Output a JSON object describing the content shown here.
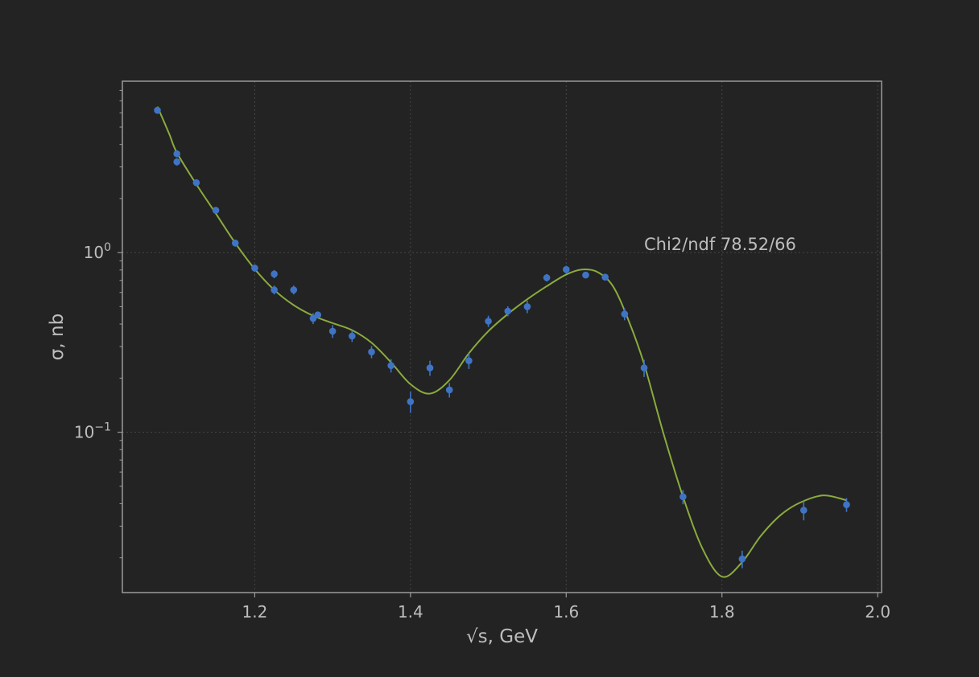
{
  "chart_data": {
    "type": "scatter",
    "xlabel": "√s, GeV",
    "ylabel": "σ, nb",
    "xlim": [
      1.03,
      2.005
    ],
    "ylim": [
      0.0128,
      9.0
    ],
    "y_scale": "log",
    "grid": true,
    "x_ticks": [
      {
        "value": 1.2,
        "label": "1.2"
      },
      {
        "value": 1.4,
        "label": "1.4"
      },
      {
        "value": 1.6,
        "label": "1.6"
      },
      {
        "value": 1.8,
        "label": "1.8"
      },
      {
        "value": 2.0,
        "label": "2.0"
      }
    ],
    "y_ticks": [
      {
        "value": 1.0,
        "base": "10",
        "exp": "0"
      },
      {
        "value": 0.1,
        "base": "10",
        "exp": "−1"
      }
    ],
    "annotation": "Chi2/ndf 78.52/66",
    "colors": {
      "background": "#232323",
      "axes": "#9a9a9a",
      "grid": "#454545",
      "text": "#bdbdbd",
      "points": "#3f74c5",
      "fit": "#8aab3e"
    },
    "series": [
      {
        "kind": "data",
        "points": [
          {
            "x": 1.075,
            "y": 6.2,
            "err": 0.28
          },
          {
            "x": 1.1,
            "y": 3.55,
            "err": 0.16
          },
          {
            "x": 1.1,
            "y": 3.2,
            "err": 0.15
          },
          {
            "x": 1.125,
            "y": 2.45,
            "err": 0.11
          },
          {
            "x": 1.15,
            "y": 1.72,
            "err": 0.07
          },
          {
            "x": 1.175,
            "y": 1.13,
            "err": 0.05
          },
          {
            "x": 1.2,
            "y": 0.82,
            "err": 0.04
          },
          {
            "x": 1.225,
            "y": 0.76,
            "err": 0.04
          },
          {
            "x": 1.225,
            "y": 0.62,
            "err": 0.035
          },
          {
            "x": 1.25,
            "y": 0.62,
            "err": 0.035
          },
          {
            "x": 1.275,
            "y": 0.43,
            "err": 0.03
          },
          {
            "x": 1.281,
            "y": 0.45,
            "err": 0.02
          },
          {
            "x": 1.3,
            "y": 0.365,
            "err": 0.03
          },
          {
            "x": 1.325,
            "y": 0.343,
            "err": 0.025
          },
          {
            "x": 1.35,
            "y": 0.28,
            "err": 0.022
          },
          {
            "x": 1.375,
            "y": 0.235,
            "err": 0.02
          },
          {
            "x": 1.4,
            "y": 0.148,
            "err": 0.02
          },
          {
            "x": 1.425,
            "y": 0.228,
            "err": 0.022
          },
          {
            "x": 1.45,
            "y": 0.172,
            "err": 0.016
          },
          {
            "x": 1.475,
            "y": 0.25,
            "err": 0.025
          },
          {
            "x": 1.5,
            "y": 0.415,
            "err": 0.03
          },
          {
            "x": 1.525,
            "y": 0.472,
            "err": 0.03
          },
          {
            "x": 1.55,
            "y": 0.5,
            "err": 0.04
          },
          {
            "x": 1.575,
            "y": 0.725,
            "err": 0.035
          },
          {
            "x": 1.6,
            "y": 0.805,
            "err": 0.04
          },
          {
            "x": 1.625,
            "y": 0.75,
            "err": 0.025
          },
          {
            "x": 1.65,
            "y": 0.73,
            "err": 0.025
          },
          {
            "x": 1.675,
            "y": 0.455,
            "err": 0.035
          },
          {
            "x": 1.7,
            "y": 0.228,
            "err": 0.025
          },
          {
            "x": 1.75,
            "y": 0.0437,
            "err": 0.004
          },
          {
            "x": 1.826,
            "y": 0.0197,
            "err": 0.0022
          },
          {
            "x": 1.905,
            "y": 0.0368,
            "err": 0.0045
          },
          {
            "x": 1.96,
            "y": 0.0395,
            "err": 0.0035
          }
        ]
      },
      {
        "kind": "fit",
        "points": [
          [
            1.075,
            6.5
          ],
          [
            1.09,
            4.6
          ],
          [
            1.1,
            3.6
          ],
          [
            1.125,
            2.4
          ],
          [
            1.15,
            1.65
          ],
          [
            1.175,
            1.13
          ],
          [
            1.2,
            0.81
          ],
          [
            1.225,
            0.62
          ],
          [
            1.25,
            0.51
          ],
          [
            1.275,
            0.445
          ],
          [
            1.3,
            0.405
          ],
          [
            1.325,
            0.37
          ],
          [
            1.35,
            0.315
          ],
          [
            1.375,
            0.245
          ],
          [
            1.4,
            0.185
          ],
          [
            1.425,
            0.164
          ],
          [
            1.45,
            0.195
          ],
          [
            1.475,
            0.275
          ],
          [
            1.5,
            0.365
          ],
          [
            1.525,
            0.455
          ],
          [
            1.55,
            0.55
          ],
          [
            1.575,
            0.65
          ],
          [
            1.6,
            0.755
          ],
          [
            1.62,
            0.805
          ],
          [
            1.64,
            0.78
          ],
          [
            1.66,
            0.65
          ],
          [
            1.68,
            0.42
          ],
          [
            1.7,
            0.24
          ],
          [
            1.725,
            0.098
          ],
          [
            1.75,
            0.0437
          ],
          [
            1.775,
            0.0225
          ],
          [
            1.8,
            0.0157
          ],
          [
            1.825,
            0.0187
          ],
          [
            1.85,
            0.0265
          ],
          [
            1.875,
            0.0345
          ],
          [
            1.9,
            0.0405
          ],
          [
            1.93,
            0.0445
          ],
          [
            1.96,
            0.0418
          ]
        ]
      }
    ]
  }
}
